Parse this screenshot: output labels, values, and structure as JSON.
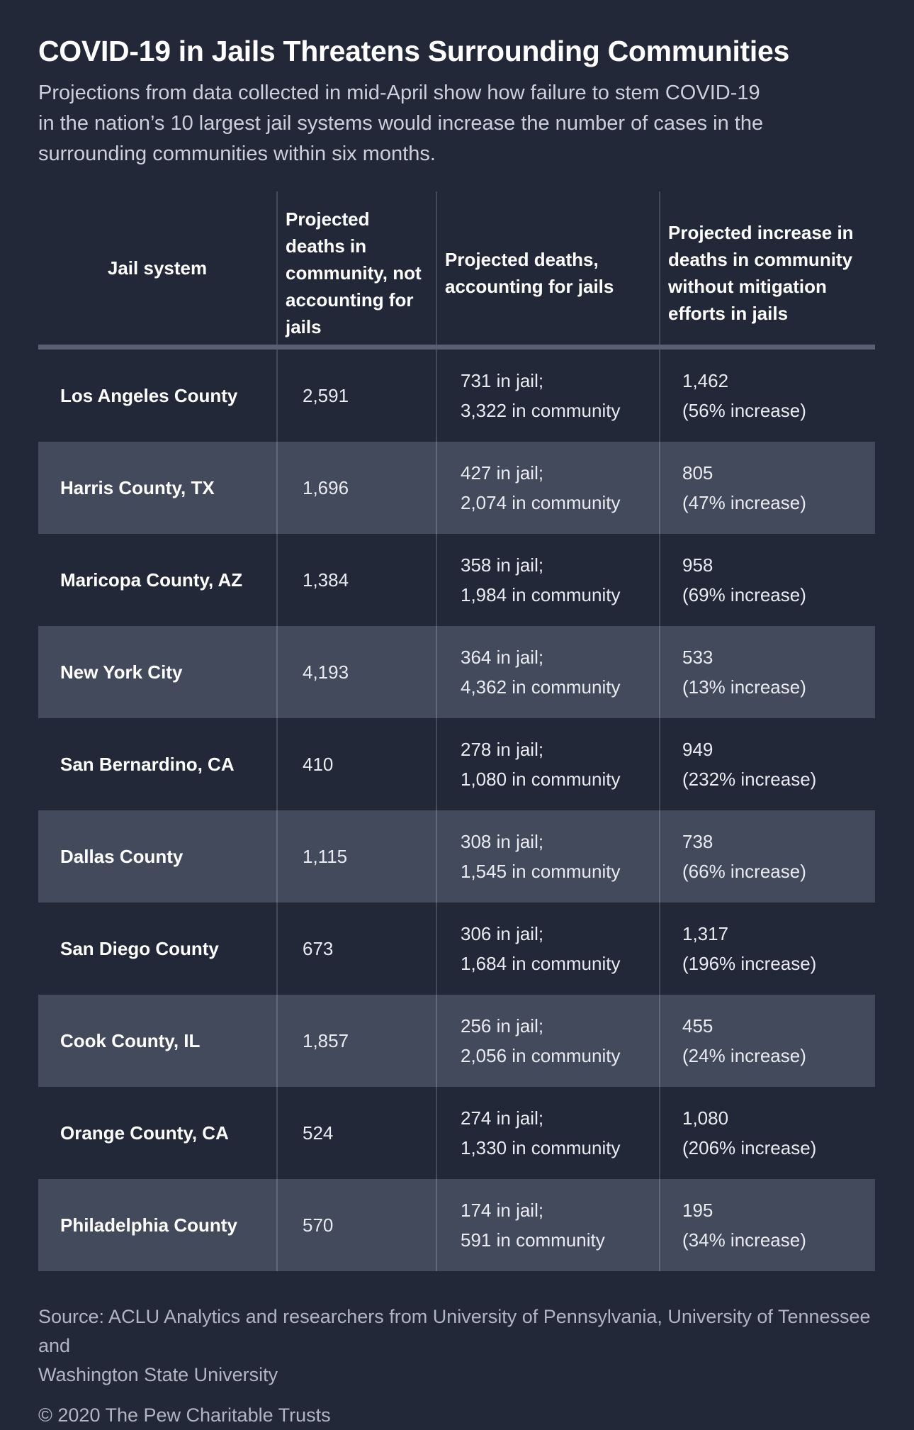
{
  "header": {
    "title": "COVID-19 in Jails Threatens Surrounding Communities",
    "subtitle_lines": [
      "Projections from data collected in mid-April show how failure to stem COVID-19",
      "in the nation’s 10 largest jail systems would increase the number of cases in the",
      "surrounding communities within six months."
    ]
  },
  "chart_data": {
    "type": "table",
    "title": "COVID-19 in Jails Threatens Surrounding Communities",
    "columns": [
      "Jail system",
      "Projected deaths in community, not accounting for jails",
      "Projected deaths, accounting for jails",
      "Projected increase in deaths in community without mitigation efforts in jails"
    ],
    "column_lines": {
      "c1": "Jail system",
      "c2": "Projected deaths in community, not accounting for jails",
      "c3_line1": "Projected deaths,",
      "c3_line2": "accounting for jails",
      "c4_line1": "Projected increase in",
      "c4_line2": "deaths in community",
      "c4_line3": "without mitigation",
      "c4_line4": "efforts in jails"
    },
    "rows": [
      {
        "jail_system": "Los Angeles County",
        "deaths_not_accounting": "2,591",
        "in_jail": "731 in jail;",
        "in_community": "3,322 in community",
        "increase_value": "1,462",
        "increase_percent": "(56% increase)"
      },
      {
        "jail_system": "Harris County, TX",
        "deaths_not_accounting": "1,696",
        "in_jail": "427 in jail;",
        "in_community": "2,074 in community",
        "increase_value": "805",
        "increase_percent": "(47% increase)"
      },
      {
        "jail_system": "Maricopa County, AZ",
        "deaths_not_accounting": "1,384",
        "in_jail": "358 in jail;",
        "in_community": "1,984 in community",
        "increase_value": "958",
        "increase_percent": "(69% increase)"
      },
      {
        "jail_system": "New York City",
        "deaths_not_accounting": "4,193",
        "in_jail": "364 in jail;",
        "in_community": "4,362 in community",
        "increase_value": "533",
        "increase_percent": "(13% increase)"
      },
      {
        "jail_system": "San Bernardino, CA",
        "deaths_not_accounting": "410",
        "in_jail": "278 in jail;",
        "in_community": "1,080 in community",
        "increase_value": "949",
        "increase_percent": "(232% increase)"
      },
      {
        "jail_system": "Dallas County",
        "deaths_not_accounting": "1,115",
        "in_jail": "308 in jail;",
        "in_community": "1,545 in community",
        "increase_value": "738",
        "increase_percent": "(66% increase)"
      },
      {
        "jail_system": "San Diego County",
        "deaths_not_accounting": "673",
        "in_jail": "306 in jail;",
        "in_community": "1,684 in community",
        "increase_value": "1,317",
        "increase_percent": "(196% increase)"
      },
      {
        "jail_system": "Cook County, IL",
        "deaths_not_accounting": "1,857",
        "in_jail": "256 in jail;",
        "in_community": "2,056 in community",
        "increase_value": "455",
        "increase_percent": "(24% increase)"
      },
      {
        "jail_system": "Orange County, CA",
        "deaths_not_accounting": "524",
        "in_jail": "274 in jail;",
        "in_community": "1,330 in community",
        "increase_value": "1,080",
        "increase_percent": "(206% increase)"
      },
      {
        "jail_system": "Philadelphia County",
        "deaths_not_accounting": "570",
        "in_jail": "174 in jail;",
        "in_community": "591 in community",
        "increase_value": "195",
        "increase_percent": "(34% increase)"
      }
    ]
  },
  "footer": {
    "source_lines": [
      "Source: ACLU Analytics and researchers from University of Pennsylvania, University of Tennessee and",
      "Washington State University"
    ],
    "copyright": "© 2020 The Pew Charitable Trusts"
  },
  "theme": {
    "bg": "#222838",
    "row_alt": "#424a5c",
    "header_rule": "#5a6073",
    "title_color": "#ffffff",
    "subtitle_color": "#ccd0da",
    "cell_color": "#e9ebf1",
    "footer_color": "#b1b5c2"
  }
}
